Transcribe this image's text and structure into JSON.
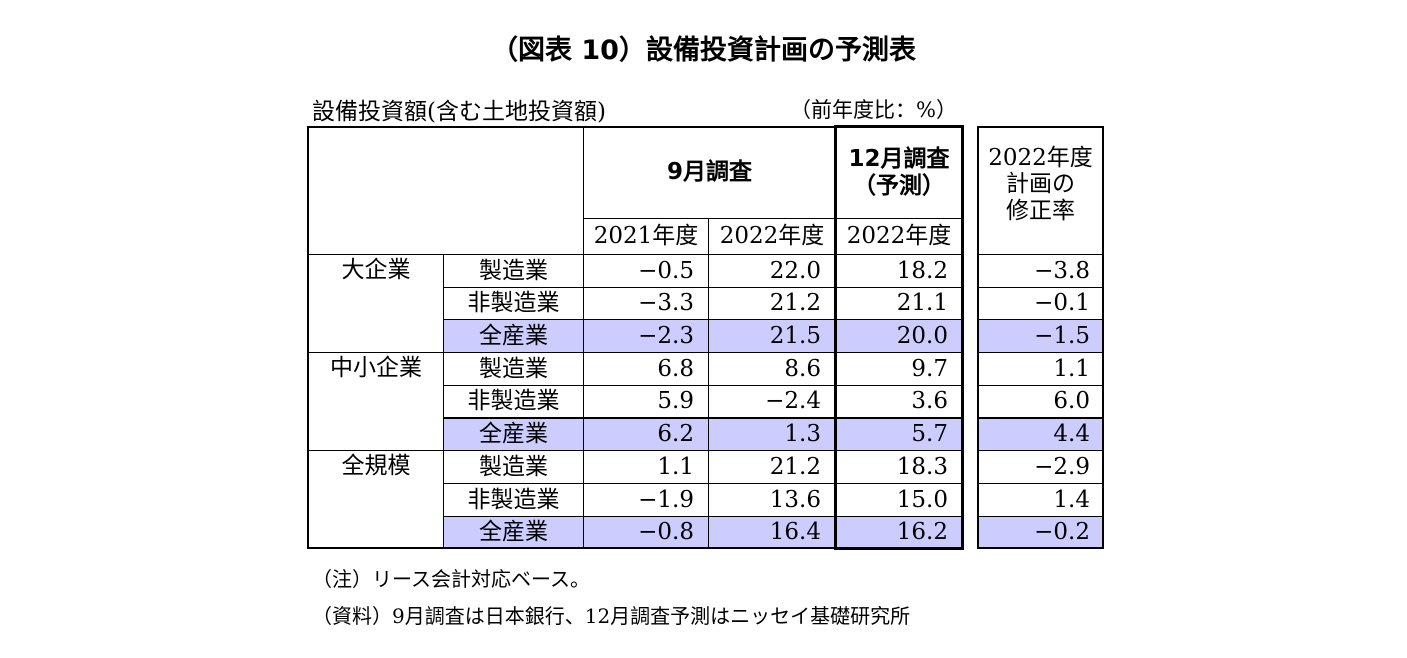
{
  "title": "（図表 10）設備投資計画の予測表",
  "subtitle": "設備投資額(含む土地投資額)",
  "unit": "（前年度比：%）",
  "header": {
    "september": "9月調査",
    "december": [
      "12月調査",
      "（予測）"
    ],
    "revision": [
      "2022年度",
      "計画の",
      "修正率"
    ],
    "years": [
      "2021年度",
      "2022年度",
      "2022年度"
    ]
  },
  "groups": [
    {
      "name": "大企業",
      "rows": [
        {
          "sector": "製造業",
          "values": [
            "−0.5",
            "22.0",
            "18.2"
          ],
          "revision": "−3.8"
        },
        {
          "sector": "非製造業",
          "values": [
            "−3.3",
            "21.2",
            "21.1"
          ],
          "revision": "−0.1"
        },
        {
          "sector": "全産業",
          "values": [
            "−2.3",
            "21.5",
            "20.0"
          ],
          "revision": "−1.5"
        }
      ]
    },
    {
      "name": "中小企業",
      "rows": [
        {
          "sector": "製造業",
          "values": [
            "6.8",
            "8.6",
            "9.7"
          ],
          "revision": "1.1"
        },
        {
          "sector": "非製造業",
          "values": [
            "5.9",
            "−2.4",
            "3.6"
          ],
          "revision": "6.0"
        },
        {
          "sector": "全産業",
          "values": [
            "6.2",
            "1.3",
            "5.7"
          ],
          "revision": "4.4"
        }
      ]
    },
    {
      "name": "全規模",
      "rows": [
        {
          "sector": "製造業",
          "values": [
            "1.1",
            "21.2",
            "18.3"
          ],
          "revision": "−2.9"
        },
        {
          "sector": "非製造業",
          "values": [
            "−1.9",
            "13.6",
            "15.0"
          ],
          "revision": "1.4"
        },
        {
          "sector": "全産業",
          "values": [
            "−0.8",
            "16.4",
            "16.2"
          ],
          "revision": "−0.2"
        }
      ]
    }
  ],
  "notes": [
    "（注）リース会計対応ベース。",
    "（資料）9月調査は日本銀行、12月調査予測はニッセイ基礎研究所"
  ]
}
